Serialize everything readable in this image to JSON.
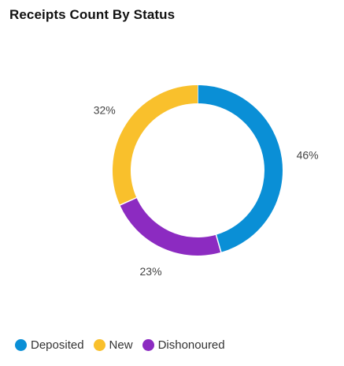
{
  "widget": {
    "title": "Receipts Count By Status"
  },
  "chart_data": {
    "type": "pie",
    "title": "Receipts Count By Status",
    "style": "donut",
    "categories": [
      "Deposited",
      "Dishonoured",
      "New"
    ],
    "values": [
      46,
      23,
      32
    ],
    "labels": [
      "46%",
      "23%",
      "32%"
    ],
    "colors": [
      "#0a8fd6",
      "#8c2bc1",
      "#f9c02c"
    ],
    "legend_position": "bottom-left",
    "legend": [
      {
        "name": "Deposited",
        "color": "#0a8fd6"
      },
      {
        "name": "New",
        "color": "#f9c02c"
      },
      {
        "name": "Dishonoured",
        "color": "#8c2bc1"
      }
    ]
  }
}
